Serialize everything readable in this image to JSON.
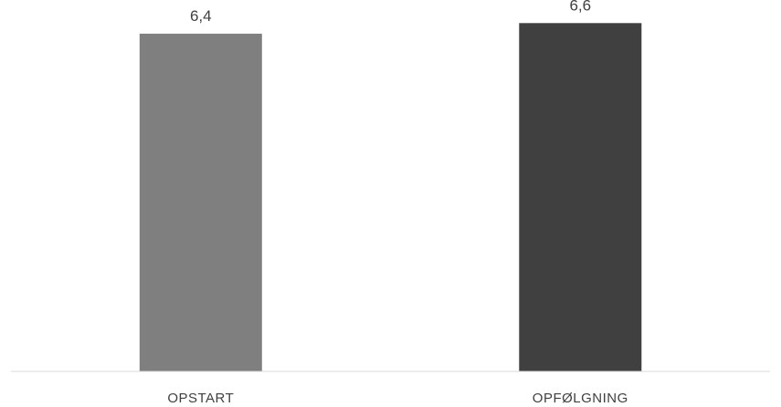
{
  "chart_data": {
    "type": "bar",
    "title": "",
    "xlabel": "",
    "ylabel": "",
    "categories": [
      "OPSTART",
      "OPFØLGNING"
    ],
    "values": [
      6.4,
      6.6
    ],
    "value_labels": [
      "6,4",
      "6,6"
    ],
    "ylim": [
      0,
      6.9
    ],
    "grid": false,
    "legend": "none",
    "colors": [
      "#7f7f7f",
      "#404040"
    ],
    "axis_color": "#d9d9d9",
    "label_color": "#404040"
  }
}
